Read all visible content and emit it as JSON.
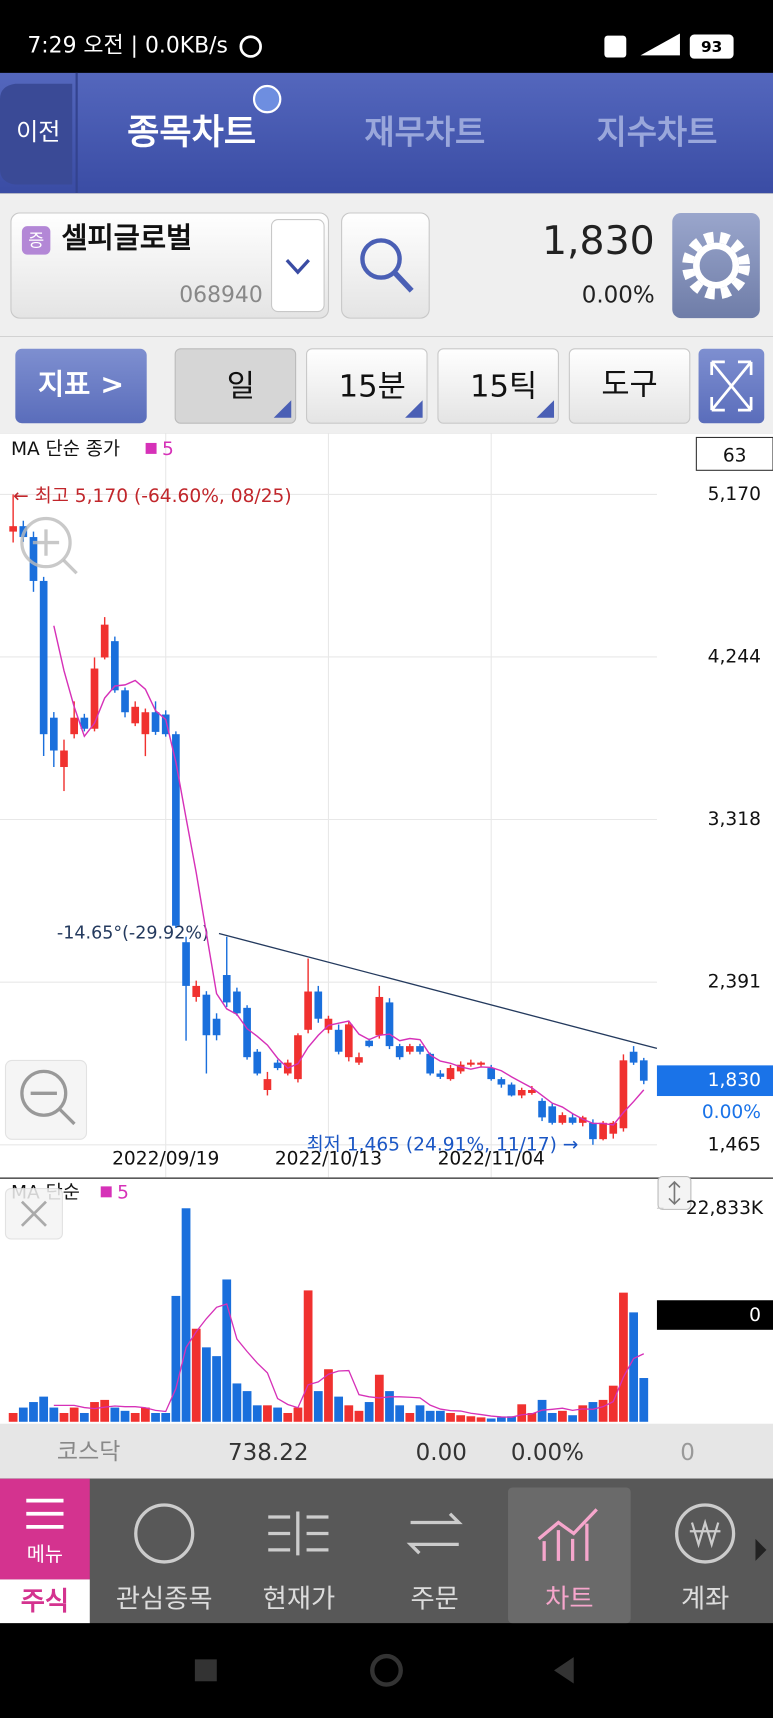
{
  "status_bar": {
    "time": "7:29 오전 | 0.0KB/s",
    "battery": "93"
  },
  "header": {
    "back": "이전",
    "tabs": [
      "종목차트",
      "재무차트",
      "지수차트"
    ]
  },
  "stock": {
    "badge": "증",
    "name": "셀피글로벌",
    "code": "068940",
    "price": "1,830",
    "change": "0.00%"
  },
  "toolbar": {
    "indicator": "지표 >",
    "buttons": [
      "일",
      "15분",
      "15틱",
      "도구"
    ]
  },
  "chart_data": [
    {
      "type": "candlestick",
      "title": "MA 단순 종가",
      "ma_period": 5,
      "count": 63,
      "categories": [
        null,
        null,
        null,
        null,
        null,
        null,
        null,
        null,
        null,
        null,
        null,
        null,
        null,
        null,
        null,
        "2022/09/19",
        null,
        null,
        null,
        null,
        null,
        null,
        null,
        null,
        null,
        null,
        null,
        null,
        null,
        null,
        null,
        "2022/10/13",
        null,
        null,
        null,
        null,
        null,
        null,
        null,
        null,
        null,
        null,
        null,
        null,
        null,
        null,
        null,
        "2022/11/04",
        null,
        null,
        null,
        null,
        null,
        null,
        null,
        null,
        null,
        null,
        null,
        null,
        null,
        null,
        null
      ],
      "open": [
        4958,
        4989,
        4927,
        4677,
        3898,
        3617,
        3804,
        3898,
        3835,
        4241,
        4334,
        4054,
        3866,
        3804,
        3929,
        3916,
        3804,
        2619,
        2307,
        2320,
        2183,
        2432,
        2338,
        2245,
        1995,
        1777,
        1933,
        1871,
        1839,
        2120,
        2338,
        2120,
        2120,
        1964,
        1933,
        2058,
        2089,
        2276,
        2027,
        1995,
        2027,
        1983,
        1871,
        1839,
        1883,
        1921,
        1921,
        1902,
        1839,
        1808,
        1746,
        1760,
        1715,
        1684,
        1590,
        1621,
        1590,
        1590,
        1497,
        1528,
        1559,
        1995,
        1946
      ],
      "high": [
        5170,
        5020,
        4958,
        4700,
        3930,
        3773,
        3991,
        3920,
        4241,
        4471,
        4360,
        4070,
        3991,
        3950,
        3991,
        3940,
        3820,
        2650,
        2400,
        2340,
        2214,
        2650,
        2360,
        2260,
        2010,
        1880,
        1950,
        1950,
        2100,
        2526,
        2370,
        2200,
        2150,
        2170,
        1990,
        2070,
        2370,
        2300,
        2040,
        2040,
        2040,
        1990,
        1890,
        1920,
        1940,
        1950,
        1940,
        1920,
        1850,
        1820,
        1790,
        1800,
        1730,
        1700,
        1650,
        1640,
        1630,
        1610,
        1600,
        1600,
        1980,
        2027,
        1960
      ],
      "low": [
        4896,
        4900,
        4615,
        3680,
        3617,
        3480,
        3780,
        3820,
        3820,
        4230,
        4040,
        3900,
        3850,
        3679,
        3800,
        3790,
        2700,
        2058,
        2280,
        1871,
        2060,
        2250,
        2200,
        1950,
        1860,
        1746,
        1890,
        1860,
        1820,
        2100,
        2160,
        2100,
        1980,
        1940,
        1920,
        2020,
        2070,
        2010,
        1950,
        1980,
        1980,
        1860,
        1840,
        1830,
        1870,
        1910,
        1910,
        1830,
        1790,
        1740,
        1730,
        1750,
        1600,
        1580,
        1580,
        1580,
        1570,
        1465,
        1490,
        1500,
        1540,
        1920,
        1810
      ],
      "close": [
        4989,
        4927,
        4677,
        3804,
        3711,
        3711,
        3898,
        3835,
        4178,
        4428,
        4054,
        3929,
        3960,
        3929,
        3817,
        3804,
        2713,
        2370,
        2370,
        2089,
        2089,
        2276,
        2214,
        1964,
        1871,
        1839,
        1902,
        1933,
        2089,
        2338,
        2183,
        2183,
        1995,
        2151,
        1964,
        2027,
        2307,
        2027,
        1964,
        2027,
        1995,
        1871,
        1852,
        1902,
        1921,
        1933,
        1933,
        1839,
        1808,
        1746,
        1777,
        1777,
        1621,
        1590,
        1634,
        1590,
        1621,
        1497,
        1590,
        1590,
        1946,
        1933,
        1830
      ],
      "up_color": "#f0312f",
      "down_color": "#1a6fdc",
      "ma_color": "#d631b8",
      "ylim": [
        1465,
        5170
      ],
      "yticks": [
        {
          "value": 5170,
          "label": "5,170"
        },
        {
          "value": 4244,
          "label": "4,244"
        },
        {
          "value": 3318,
          "label": "3,318"
        },
        {
          "value": 2391,
          "label": "2,391"
        },
        {
          "value": 1465,
          "label": "1,465"
        }
      ],
      "grid": true,
      "annotations": {
        "high": "← 최고 5,170 (-64.60%, 08/25)",
        "low": "최저 1,465 (24.91%, 11/17) →",
        "trend": "-14.65°(-29.92%)"
      },
      "current": {
        "value": 1830,
        "label": "1,830"
      },
      "current_change": "0.00%"
    },
    {
      "type": "bar",
      "title": "MA 단순",
      "ma_period": 5,
      "values": [
        940,
        1520,
        2110,
        2690,
        1520,
        940,
        1520,
        940,
        2110,
        2340,
        1520,
        1170,
        940,
        1520,
        940,
        940,
        13460,
        22833,
        9950,
        7960,
        7020,
        15220,
        4100,
        3280,
        1760,
        1760,
        1520,
        940,
        1520,
        14050,
        3280,
        5620,
        2690,
        1760,
        1170,
        2110,
        5030,
        3280,
        1760,
        940,
        1760,
        1170,
        1170,
        940,
        700,
        590,
        470,
        350,
        470,
        590,
        1870,
        940,
        2340,
        940,
        1170,
        700,
        1760,
        2110,
        2340,
        3860,
        13810,
        11700,
        4680
      ],
      "ylim": [
        0,
        22833
      ],
      "yticks": [
        {
          "value": 22833,
          "label": "22,833K"
        }
      ],
      "current": {
        "value": 0,
        "label": "0"
      }
    }
  ],
  "market": {
    "name": "코스닥",
    "index": "738.22",
    "change": "0.00",
    "rate": "0.00%",
    "volume": "0"
  },
  "nav": {
    "menu": "메뉴",
    "items": [
      "주식",
      "관심종목",
      "현재가",
      "주문",
      "차트",
      "계좌"
    ]
  }
}
